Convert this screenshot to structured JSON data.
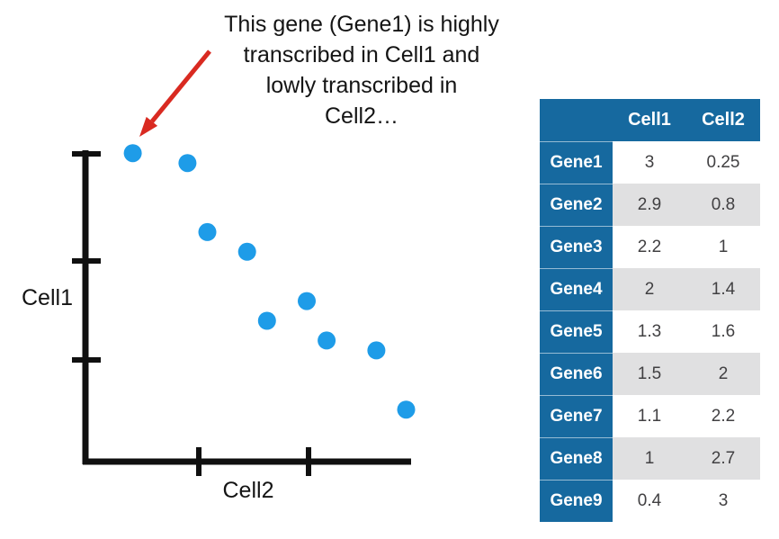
{
  "annotation": {
    "lines": [
      "This gene (Gene1) is highly",
      "transcribed in Cell1 and",
      "lowly transcribed in",
      "Cell2…"
    ],
    "arrow_color": "#d92a21"
  },
  "chart_data": {
    "type": "scatter",
    "title": "",
    "xlabel": "Cell2",
    "ylabel": "Cell1",
    "xlim": [
      0,
      3.3
    ],
    "ylim": [
      0,
      3.3
    ],
    "grid": false,
    "legend": false,
    "dot_color": "#1e9ce8",
    "axis_color": "#101010",
    "points": [
      {
        "gene": "Gene1",
        "x": 0.25,
        "y": 3
      },
      {
        "gene": "Gene2",
        "x": 0.8,
        "y": 2.9
      },
      {
        "gene": "Gene3",
        "x": 1,
        "y": 2.2
      },
      {
        "gene": "Gene4",
        "x": 1.4,
        "y": 2
      },
      {
        "gene": "Gene5",
        "x": 1.6,
        "y": 1.3
      },
      {
        "gene": "Gene6",
        "x": 2,
        "y": 1.5
      },
      {
        "gene": "Gene7",
        "x": 2.2,
        "y": 1.1
      },
      {
        "gene": "Gene8",
        "x": 2.7,
        "y": 1
      },
      {
        "gene": "Gene9",
        "x": 3,
        "y": 0.4
      }
    ]
  },
  "table": {
    "header": {
      "corner": "",
      "col1": "Cell1",
      "col2": "Cell2"
    },
    "rows": [
      {
        "label": "Gene1",
        "cell1": "3",
        "cell2": "0.25"
      },
      {
        "label": "Gene2",
        "cell1": "2.9",
        "cell2": "0.8"
      },
      {
        "label": "Gene3",
        "cell1": "2.2",
        "cell2": "1"
      },
      {
        "label": "Gene4",
        "cell1": "2",
        "cell2": "1.4"
      },
      {
        "label": "Gene5",
        "cell1": "1.3",
        "cell2": "1.6"
      },
      {
        "label": "Gene6",
        "cell1": "1.5",
        "cell2": "2"
      },
      {
        "label": "Gene7",
        "cell1": "1.1",
        "cell2": "2.2"
      },
      {
        "label": "Gene8",
        "cell1": "1",
        "cell2": "2.7"
      },
      {
        "label": "Gene9",
        "cell1": "0.4",
        "cell2": "3"
      }
    ],
    "colors": {
      "header_bg": "#16699f",
      "header_text": "#ffffff",
      "stripe_bg": "#e0e0e1",
      "value_text": "#414042"
    }
  }
}
